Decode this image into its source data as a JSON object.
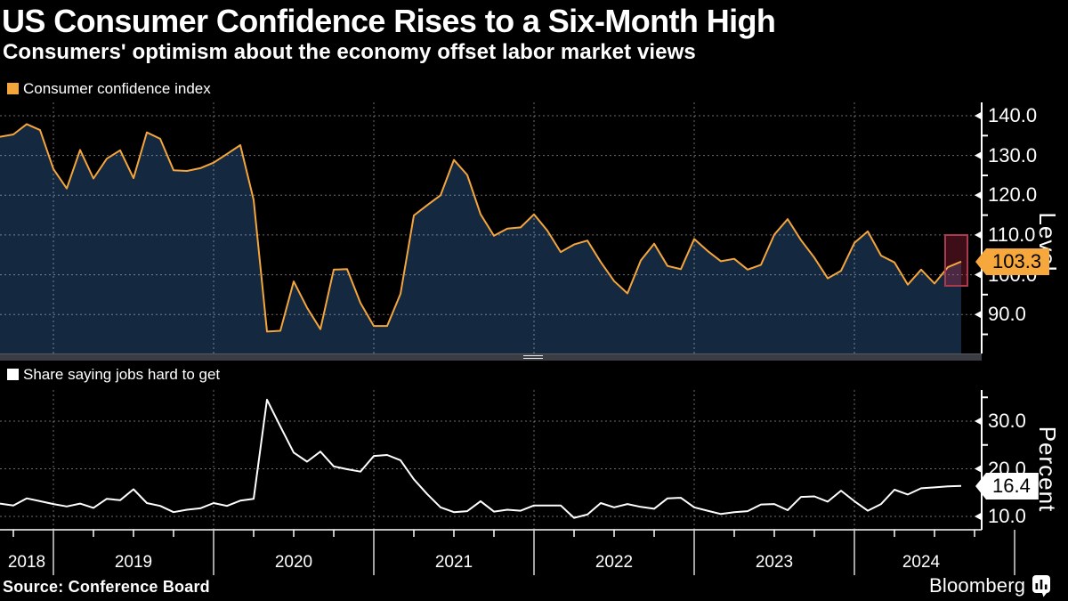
{
  "header": {
    "title": "US Consumer Confidence Rises to a Six-Month High",
    "subtitle": "Consumers' optimism about the economy offset labor market views"
  },
  "footer": {
    "source": "Source: Conference Board",
    "brand": "Bloomberg"
  },
  "colors": {
    "background": "#000000",
    "accent_orange": "#F5A63B",
    "area_fill": "#142840",
    "line_white": "#FFFFFF",
    "highlight_fill": "#C22B4C",
    "highlight_stroke": "#A93B50",
    "grid": "#FFFFFF",
    "divider": "#3A3E44",
    "badge_confidence_bg": "#F6A83C",
    "badge_jobs_bg": "#FFFFFF"
  },
  "x_axis": {
    "year_labels": [
      "2018",
      "2019",
      "2020",
      "2021",
      "2022",
      "2023",
      "2024"
    ]
  },
  "chart_data": [
    {
      "type": "area",
      "title": "Consumer confidence index",
      "ylabel": "Level",
      "color": "#F5A63B",
      "fill": "#142840",
      "start": "2018-08",
      "end": "2024-08",
      "frequency": "monthly",
      "ylim": [
        80,
        143
      ],
      "ytick_values": [
        140,
        130,
        120,
        110,
        100,
        90
      ],
      "ytick_labels": [
        "140.0",
        "130.0",
        "120.0",
        "110.0",
        "100.0",
        "90.0"
      ],
      "yminor_values": [
        135,
        125,
        115,
        105,
        95,
        85
      ],
      "last_value": 103.3,
      "last_value_label": "103.3",
      "highlight_last_point": true,
      "values": [
        134.7,
        135.3,
        137.9,
        136.4,
        126.6,
        121.7,
        131.4,
        124.2,
        129.2,
        131.3,
        124.3,
        135.8,
        134.2,
        126.3,
        126.1,
        126.8,
        128.2,
        130.4,
        132.6,
        118.8,
        85.7,
        85.9,
        98.3,
        91.7,
        86.3,
        101.3,
        101.4,
        92.9,
        87.1,
        87.1,
        95.2,
        114.9,
        117.5,
        120.0,
        128.9,
        125.1,
        115.2,
        109.8,
        111.6,
        111.9,
        115.2,
        111.1,
        105.7,
        107.6,
        108.6,
        103.2,
        98.4,
        95.3,
        103.6,
        107.8,
        102.2,
        101.4,
        109.0,
        106.0,
        103.4,
        104.0,
        101.3,
        102.5,
        110.1,
        114.0,
        108.7,
        104.3,
        99.1,
        101.0,
        108.0,
        110.9,
        104.8,
        103.1,
        97.5,
        101.3,
        97.8,
        101.9,
        103.3
      ]
    },
    {
      "type": "line",
      "title": "Share saying jobs hard to get",
      "ylabel": "Percent",
      "color": "#FFFFFF",
      "start": "2018-08",
      "end": "2024-08",
      "frequency": "monthly",
      "ylim": [
        7,
        36
      ],
      "ytick_values": [
        30,
        20,
        10
      ],
      "ytick_labels": [
        "30.0",
        "20.0",
        "10.0"
      ],
      "yminor_values": [
        35,
        25,
        15
      ],
      "last_value": 16.4,
      "last_value_label": "16.4",
      "highlight_last_point": false,
      "values": [
        12.7,
        12.3,
        13.8,
        13.2,
        12.6,
        12.1,
        12.7,
        11.8,
        13.7,
        13.4,
        15.7,
        12.8,
        12.2,
        10.9,
        11.4,
        11.7,
        12.8,
        12.2,
        13.3,
        13.7,
        34.5,
        28.9,
        23.4,
        21.5,
        23.6,
        20.5,
        19.9,
        19.4,
        22.7,
        22.9,
        21.8,
        17.8,
        14.7,
        11.9,
        10.9,
        11.1,
        13.2,
        11.0,
        11.4,
        11.2,
        12.3,
        12.3,
        12.3,
        9.7,
        10.4,
        12.8,
        11.9,
        12.6,
        12.0,
        11.6,
        13.8,
        13.9,
        11.9,
        11.2,
        10.5,
        10.9,
        11.1,
        12.5,
        12.6,
        11.3,
        14.1,
        14.2,
        13.1,
        15.4,
        13.2,
        11.2,
        12.6,
        15.6,
        14.6,
        15.9,
        16.1,
        16.3,
        16.4
      ]
    }
  ]
}
